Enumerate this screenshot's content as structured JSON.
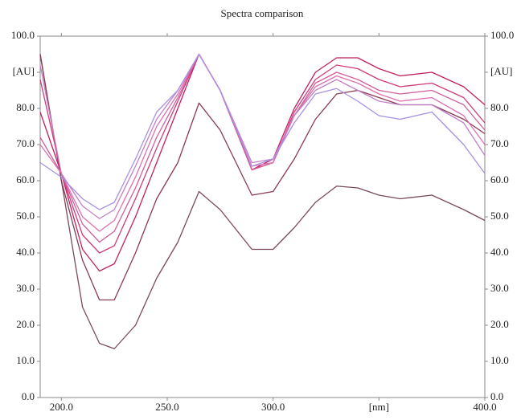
{
  "chart_data": {
    "type": "line",
    "title": "Spectra comparison",
    "x": [
      190,
      200,
      210,
      218,
      225,
      235,
      245,
      255,
      265,
      275,
      290,
      300,
      310,
      320,
      330,
      340,
      350,
      360,
      375,
      390,
      400
    ],
    "xlim": [
      190,
      400
    ],
    "xticks": [
      {
        "value": 200,
        "label": "200.0"
      },
      {
        "value": 250,
        "label": "250.0"
      },
      {
        "value": 300,
        "label": "300.0"
      },
      {
        "value": 350,
        "label": "[nm]"
      },
      {
        "value": 400,
        "label": "400.0"
      }
    ],
    "ylim": [
      0,
      100
    ],
    "yticks": [
      {
        "value": 0,
        "label": "0.0"
      },
      {
        "value": 10,
        "label": "10.0"
      },
      {
        "value": 20,
        "label": "20.0"
      },
      {
        "value": 30,
        "label": "30.0"
      },
      {
        "value": 40,
        "label": "40.0"
      },
      {
        "value": 50,
        "label": "50.0"
      },
      {
        "value": 60,
        "label": "60.0"
      },
      {
        "value": 70,
        "label": "70.0"
      },
      {
        "value": 80,
        "label": "80.0"
      },
      {
        "value": 90,
        "label": "[AU]"
      },
      {
        "value": 100,
        "label": "100.0"
      }
    ],
    "series": [
      {
        "color": "#7a4a5a",
        "values": [
          95,
          60,
          25,
          15,
          13.5,
          20,
          33,
          43,
          57,
          52,
          41,
          41,
          47,
          54,
          58.5,
          58,
          56,
          55,
          56,
          52,
          49
        ]
      },
      {
        "color": "#8a3a50",
        "values": [
          95,
          60,
          38,
          27,
          27,
          40,
          55,
          65,
          81.5,
          74,
          56,
          57,
          66,
          77,
          84,
          85,
          83,
          81,
          81,
          77,
          73
        ]
      },
      {
        "color": "#c02060",
        "values": [
          79,
          62,
          41,
          35,
          37,
          50,
          65,
          80,
          95,
          85,
          63,
          66,
          80,
          90,
          94,
          94,
          91,
          89,
          90,
          86,
          81
        ]
      },
      {
        "color": "#d03a7a",
        "values": [
          88,
          62,
          45,
          40,
          42,
          55,
          69,
          82,
          95,
          85,
          63,
          65,
          79,
          88,
          92,
          91,
          88,
          86,
          87,
          83,
          76
        ]
      },
      {
        "color": "#d0609a",
        "values": [
          72,
          62,
          48,
          43,
          46,
          58,
          72,
          83,
          95,
          85,
          63,
          65,
          78,
          87,
          90,
          88,
          85,
          84,
          85,
          81,
          74
        ]
      },
      {
        "color": "#e070b0",
        "values": [
          70,
          62,
          50,
          46,
          49,
          61,
          75,
          84,
          95,
          85,
          64,
          65,
          78,
          86,
          89,
          87,
          84,
          82,
          83,
          78,
          70
        ]
      },
      {
        "color": "#c080c8",
        "values": [
          92,
          62,
          53,
          49.5,
          52,
          64,
          77,
          85,
          95,
          85,
          65,
          66,
          78,
          85,
          88,
          85,
          82,
          81,
          81,
          76,
          67
        ]
      },
      {
        "color": "#a890e0",
        "values": [
          65,
          61,
          55,
          52,
          54,
          66,
          79,
          85,
          95,
          85,
          64,
          66,
          76,
          84,
          85.5,
          82,
          78,
          77,
          79,
          70,
          62
        ]
      }
    ]
  }
}
